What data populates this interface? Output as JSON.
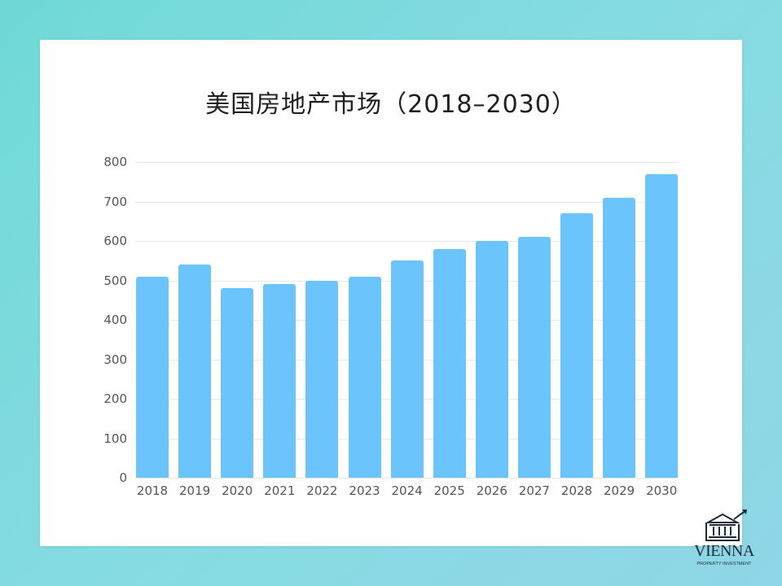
{
  "title": "美国房地产市场（2018–2030）",
  "colors": {
    "bar": "#6cc4fd",
    "background_gradient": [
      "#6fd9d6",
      "#8fd6e6"
    ],
    "card": "#ffffff"
  },
  "logo": {
    "name": "VIENNA",
    "subtitle": "PROPERTY INVESTMENT",
    "icon": "bank-building-growth-arrow-icon"
  },
  "chart_data": {
    "type": "bar",
    "title": "美国房地产市场（2018–2030）",
    "xlabel": "",
    "ylabel": "",
    "categories": [
      "2018",
      "2019",
      "2020",
      "2021",
      "2022",
      "2023",
      "2024",
      "2025",
      "2026",
      "2027",
      "2028",
      "2029",
      "2030"
    ],
    "values": [
      510,
      540,
      480,
      490,
      500,
      510,
      550,
      580,
      600,
      610,
      670,
      710,
      770
    ],
    "ylim": [
      0,
      800
    ],
    "yticks": [
      0,
      100,
      200,
      300,
      400,
      500,
      600,
      700,
      800
    ],
    "grid": true,
    "legend": null
  }
}
